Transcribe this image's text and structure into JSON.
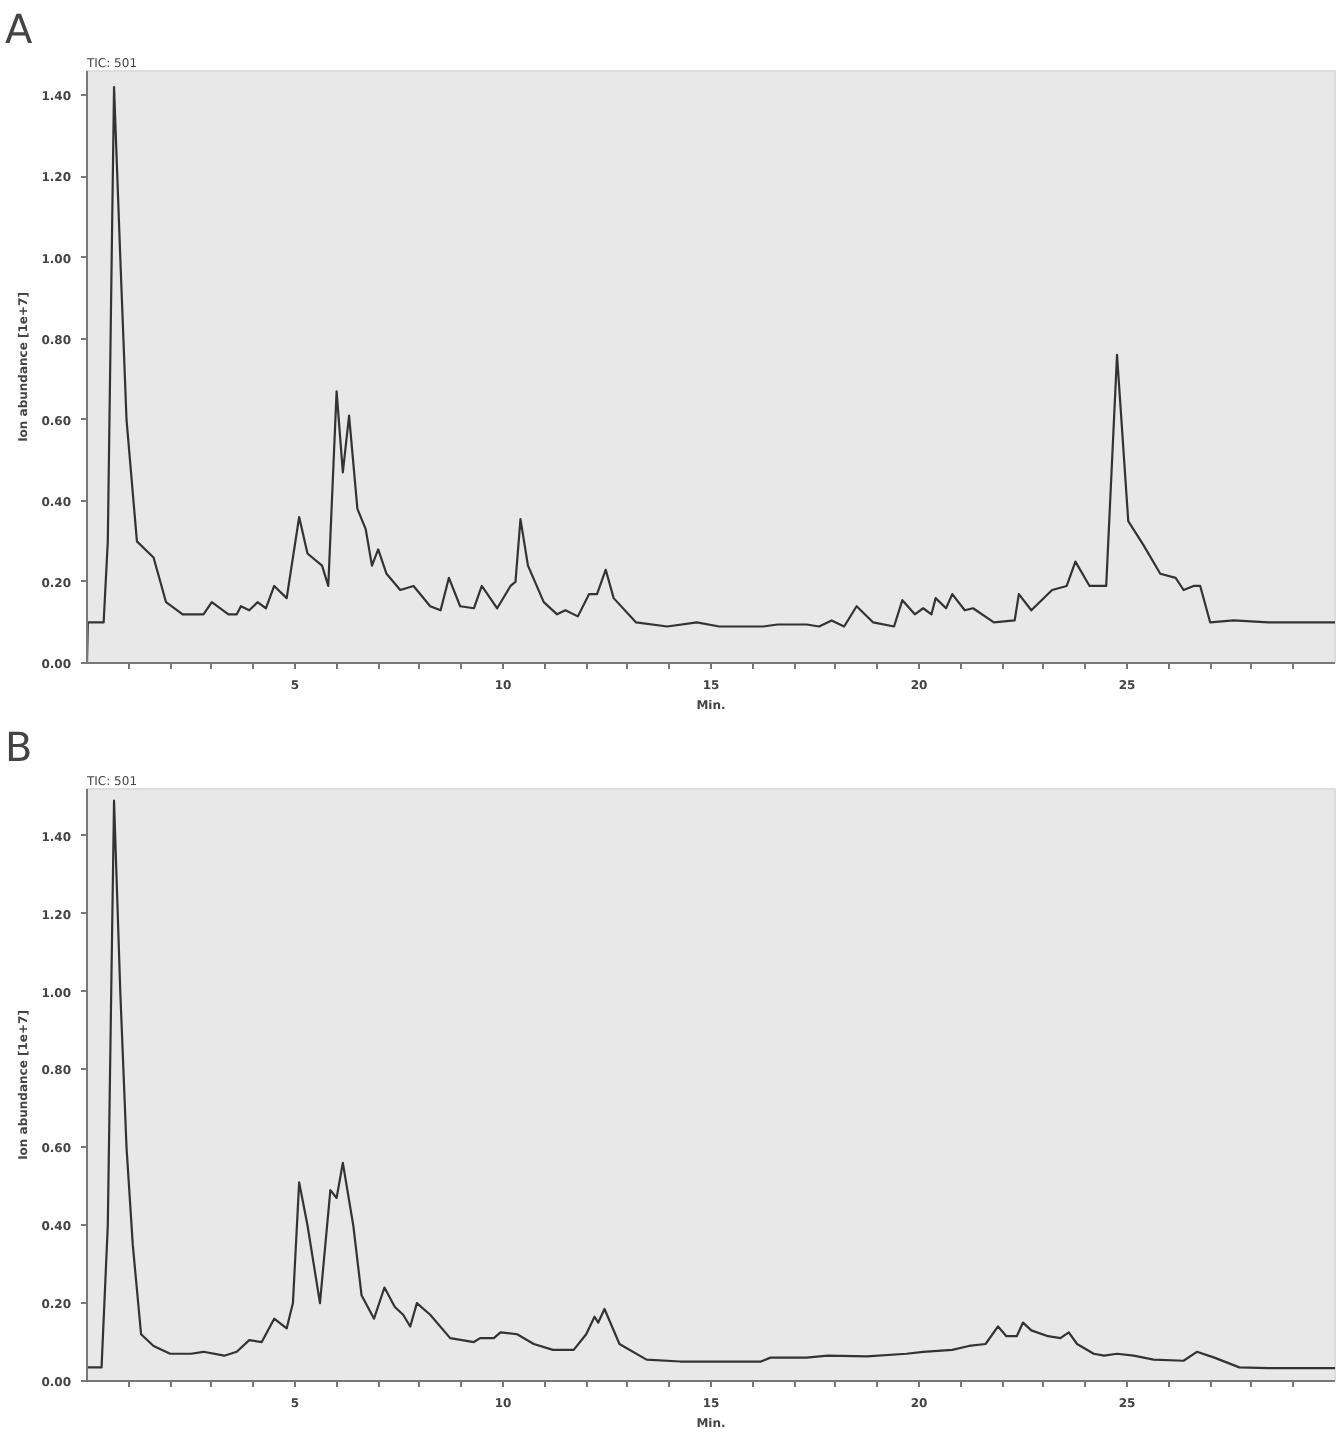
{
  "chart_data": [
    {
      "type": "line",
      "title": "TIC: 501",
      "xlabel": "Min.",
      "ylabel": "Ion abundance [1e+7]",
      "annotations": [
        "A"
      ],
      "xlim": [
        0,
        30
      ],
      "ylim": [
        0,
        1.46
      ],
      "xticks": [
        {
          "value": 1,
          "label": null
        },
        {
          "value": 2,
          "label": null
        },
        {
          "value": 3,
          "label": null
        },
        {
          "value": 4,
          "label": null
        },
        5,
        {
          "value": 6,
          "label": null
        },
        {
          "value": 7,
          "label": null
        },
        {
          "value": 8,
          "label": null
        },
        {
          "value": 9,
          "label": null
        },
        10,
        {
          "value": 11,
          "label": null
        },
        {
          "value": 12,
          "label": null
        },
        {
          "value": 13,
          "label": null
        },
        {
          "value": 14,
          "label": null
        },
        15,
        {
          "value": 16,
          "label": null
        },
        {
          "value": 17,
          "label": null
        },
        {
          "value": 18,
          "label": null
        },
        {
          "value": 19,
          "label": null
        },
        20,
        {
          "value": 21,
          "label": null
        },
        {
          "value": 22,
          "label": null
        },
        {
          "value": 23,
          "label": null
        },
        {
          "value": 24,
          "label": null
        },
        25,
        {
          "value": 26,
          "label": null
        },
        {
          "value": 27,
          "label": null
        },
        {
          "value": 28,
          "label": null
        },
        {
          "value": 29,
          "label": null
        }
      ],
      "yticks": [
        {
          "value": 0,
          "label": "0.00"
        },
        {
          "value": 0.2,
          "label": "0.20"
        },
        {
          "value": 0.4,
          "label": "0.40"
        },
        {
          "value": 0.6,
          "label": "0.60"
        },
        {
          "value": 0.8,
          "label": "0.80"
        },
        {
          "value": 1.0,
          "label": "1.00"
        },
        {
          "value": 1.2,
          "label": "1.20"
        },
        {
          "value": 1.4,
          "label": "1.40"
        }
      ],
      "grid": false,
      "marker": "none",
      "line_style": "solid",
      "series": [
        {
          "color": "#333333",
          "x": [
            0,
            0.02,
            0.4,
            0.5,
            0.65,
            0.8,
            0.95,
            1.2,
            1.4,
            1.6,
            1.9,
            2.3,
            2.8,
            3.0,
            3.4,
            3.6,
            3.7,
            3.9,
            4.1,
            4.3,
            4.5,
            4.8,
            5.1,
            5.3,
            5.65,
            5.8,
            6.0,
            6.15,
            6.3,
            6.5,
            6.7,
            6.85,
            7.0,
            7.2,
            7.53,
            7.85,
            8.25,
            8.5,
            8.7,
            8.97,
            9.3,
            9.49,
            9.86,
            10.18,
            10.3,
            10.42,
            10.6,
            10.98,
            11.3,
            11.5,
            11.8,
            12.07,
            12.26,
            12.47,
            12.66,
            13.2,
            13.95,
            14.66,
            15.2,
            16.25,
            16.6,
            17.3,
            17.6,
            17.9,
            18.2,
            18.5,
            18.9,
            19.4,
            19.6,
            19.9,
            20.1,
            20.3,
            20.4,
            20.65,
            20.8,
            21.1,
            21.3,
            21.8,
            22.3,
            22.4,
            22.7,
            23.2,
            23.55,
            23.76,
            24.1,
            24.5,
            24.76,
            25.03,
            25.4,
            25.8,
            26.17,
            26.36,
            26.6,
            26.76,
            27.0,
            27.56,
            28.4,
            30
          ],
          "values": [
            0.0,
            0.1,
            0.1,
            0.3,
            1.42,
            1.0,
            0.6,
            0.3,
            0.28,
            0.26,
            0.15,
            0.12,
            0.12,
            0.15,
            0.12,
            0.12,
            0.14,
            0.13,
            0.15,
            0.135,
            0.19,
            0.16,
            0.36,
            0.27,
            0.24,
            0.19,
            0.67,
            0.47,
            0.61,
            0.38,
            0.33,
            0.24,
            0.28,
            0.22,
            0.18,
            0.19,
            0.14,
            0.13,
            0.21,
            0.14,
            0.135,
            0.19,
            0.135,
            0.19,
            0.2,
            0.355,
            0.24,
            0.15,
            0.12,
            0.13,
            0.115,
            0.17,
            0.17,
            0.23,
            0.16,
            0.1,
            0.09,
            0.1,
            0.09,
            0.09,
            0.095,
            0.095,
            0.09,
            0.105,
            0.09,
            0.14,
            0.1,
            0.09,
            0.155,
            0.12,
            0.135,
            0.12,
            0.16,
            0.135,
            0.17,
            0.13,
            0.135,
            0.1,
            0.105,
            0.17,
            0.13,
            0.18,
            0.19,
            0.25,
            0.19,
            0.19,
            0.76,
            0.35,
            0.29,
            0.22,
            0.21,
            0.18,
            0.19,
            0.19,
            0.1,
            0.105,
            0.1,
            0.1
          ]
        }
      ]
    },
    {
      "type": "line",
      "title": "TIC: 501",
      "xlabel": "Min.",
      "ylabel": "Ion abundance [1e+7]",
      "annotations": [
        "B"
      ],
      "xlim": [
        0,
        30
      ],
      "ylim": [
        0,
        1.52
      ],
      "xticks": [
        {
          "value": 1,
          "label": null
        },
        {
          "value": 2,
          "label": null
        },
        {
          "value": 3,
          "label": null
        },
        {
          "value": 4,
          "label": null
        },
        5,
        {
          "value": 6,
          "label": null
        },
        {
          "value": 7,
          "label": null
        },
        {
          "value": 8,
          "label": null
        },
        {
          "value": 9,
          "label": null
        },
        10,
        {
          "value": 11,
          "label": null
        },
        {
          "value": 12,
          "label": null
        },
        {
          "value": 13,
          "label": null
        },
        {
          "value": 14,
          "label": null
        },
        15,
        {
          "value": 16,
          "label": null
        },
        {
          "value": 17,
          "label": null
        },
        {
          "value": 18,
          "label": null
        },
        {
          "value": 19,
          "label": null
        },
        20,
        {
          "value": 21,
          "label": null
        },
        {
          "value": 22,
          "label": null
        },
        {
          "value": 23,
          "label": null
        },
        {
          "value": 24,
          "label": null
        },
        25,
        {
          "value": 26,
          "label": null
        },
        {
          "value": 27,
          "label": null
        },
        {
          "value": 28,
          "label": null
        },
        {
          "value": 29,
          "label": null
        }
      ],
      "yticks": [
        {
          "value": 0,
          "label": "0.00"
        },
        {
          "value": 0.2,
          "label": "0.20"
        },
        {
          "value": 0.4,
          "label": "0.40"
        },
        {
          "value": 0.6,
          "label": "0.60"
        },
        {
          "value": 0.8,
          "label": "0.80"
        },
        {
          "value": 1.0,
          "label": "1.00"
        },
        {
          "value": 1.2,
          "label": "1.20"
        },
        {
          "value": 1.4,
          "label": "1.40"
        }
      ],
      "grid": false,
      "marker": "none",
      "line_style": "solid",
      "series": [
        {
          "color": "#333333",
          "x": [
            0,
            0.35,
            0.5,
            0.65,
            0.8,
            0.95,
            1.1,
            1.3,
            1.6,
            2.0,
            2.5,
            2.8,
            3.3,
            3.6,
            3.9,
            4.2,
            4.5,
            4.8,
            4.95,
            5.1,
            5.3,
            5.6,
            5.85,
            6.0,
            6.15,
            6.4,
            6.6,
            6.9,
            7.15,
            7.4,
            7.6,
            7.77,
            7.93,
            8.25,
            8.73,
            9.3,
            9.45,
            9.78,
            9.94,
            10.34,
            10.74,
            11.2,
            11.7,
            12.0,
            12.2,
            12.29,
            12.44,
            12.8,
            13.45,
            14.26,
            15.5,
            16.2,
            16.43,
            17.3,
            17.8,
            18.75,
            19.7,
            20.1,
            20.8,
            21.2,
            21.6,
            21.9,
            22.1,
            22.35,
            22.5,
            22.7,
            23.1,
            23.4,
            23.6,
            23.8,
            24.2,
            24.45,
            24.76,
            25.16,
            25.64,
            26.36,
            26.68,
            27.1,
            27.7,
            28.4,
            30
          ],
          "values": [
            0.035,
            0.035,
            0.4,
            1.49,
            1.0,
            0.6,
            0.35,
            0.12,
            0.09,
            0.07,
            0.07,
            0.075,
            0.065,
            0.075,
            0.105,
            0.1,
            0.16,
            0.135,
            0.2,
            0.51,
            0.4,
            0.2,
            0.49,
            0.47,
            0.56,
            0.4,
            0.22,
            0.16,
            0.24,
            0.19,
            0.17,
            0.14,
            0.2,
            0.17,
            0.11,
            0.1,
            0.11,
            0.11,
            0.125,
            0.12,
            0.095,
            0.08,
            0.08,
            0.12,
            0.165,
            0.15,
            0.185,
            0.095,
            0.055,
            0.05,
            0.05,
            0.05,
            0.06,
            0.06,
            0.065,
            0.063,
            0.07,
            0.075,
            0.08,
            0.09,
            0.095,
            0.14,
            0.115,
            0.115,
            0.15,
            0.13,
            0.115,
            0.11,
            0.125,
            0.095,
            0.07,
            0.065,
            0.07,
            0.065,
            0.055,
            0.052,
            0.075,
            0.06,
            0.035,
            0.033,
            0.033
          ]
        }
      ]
    }
  ]
}
